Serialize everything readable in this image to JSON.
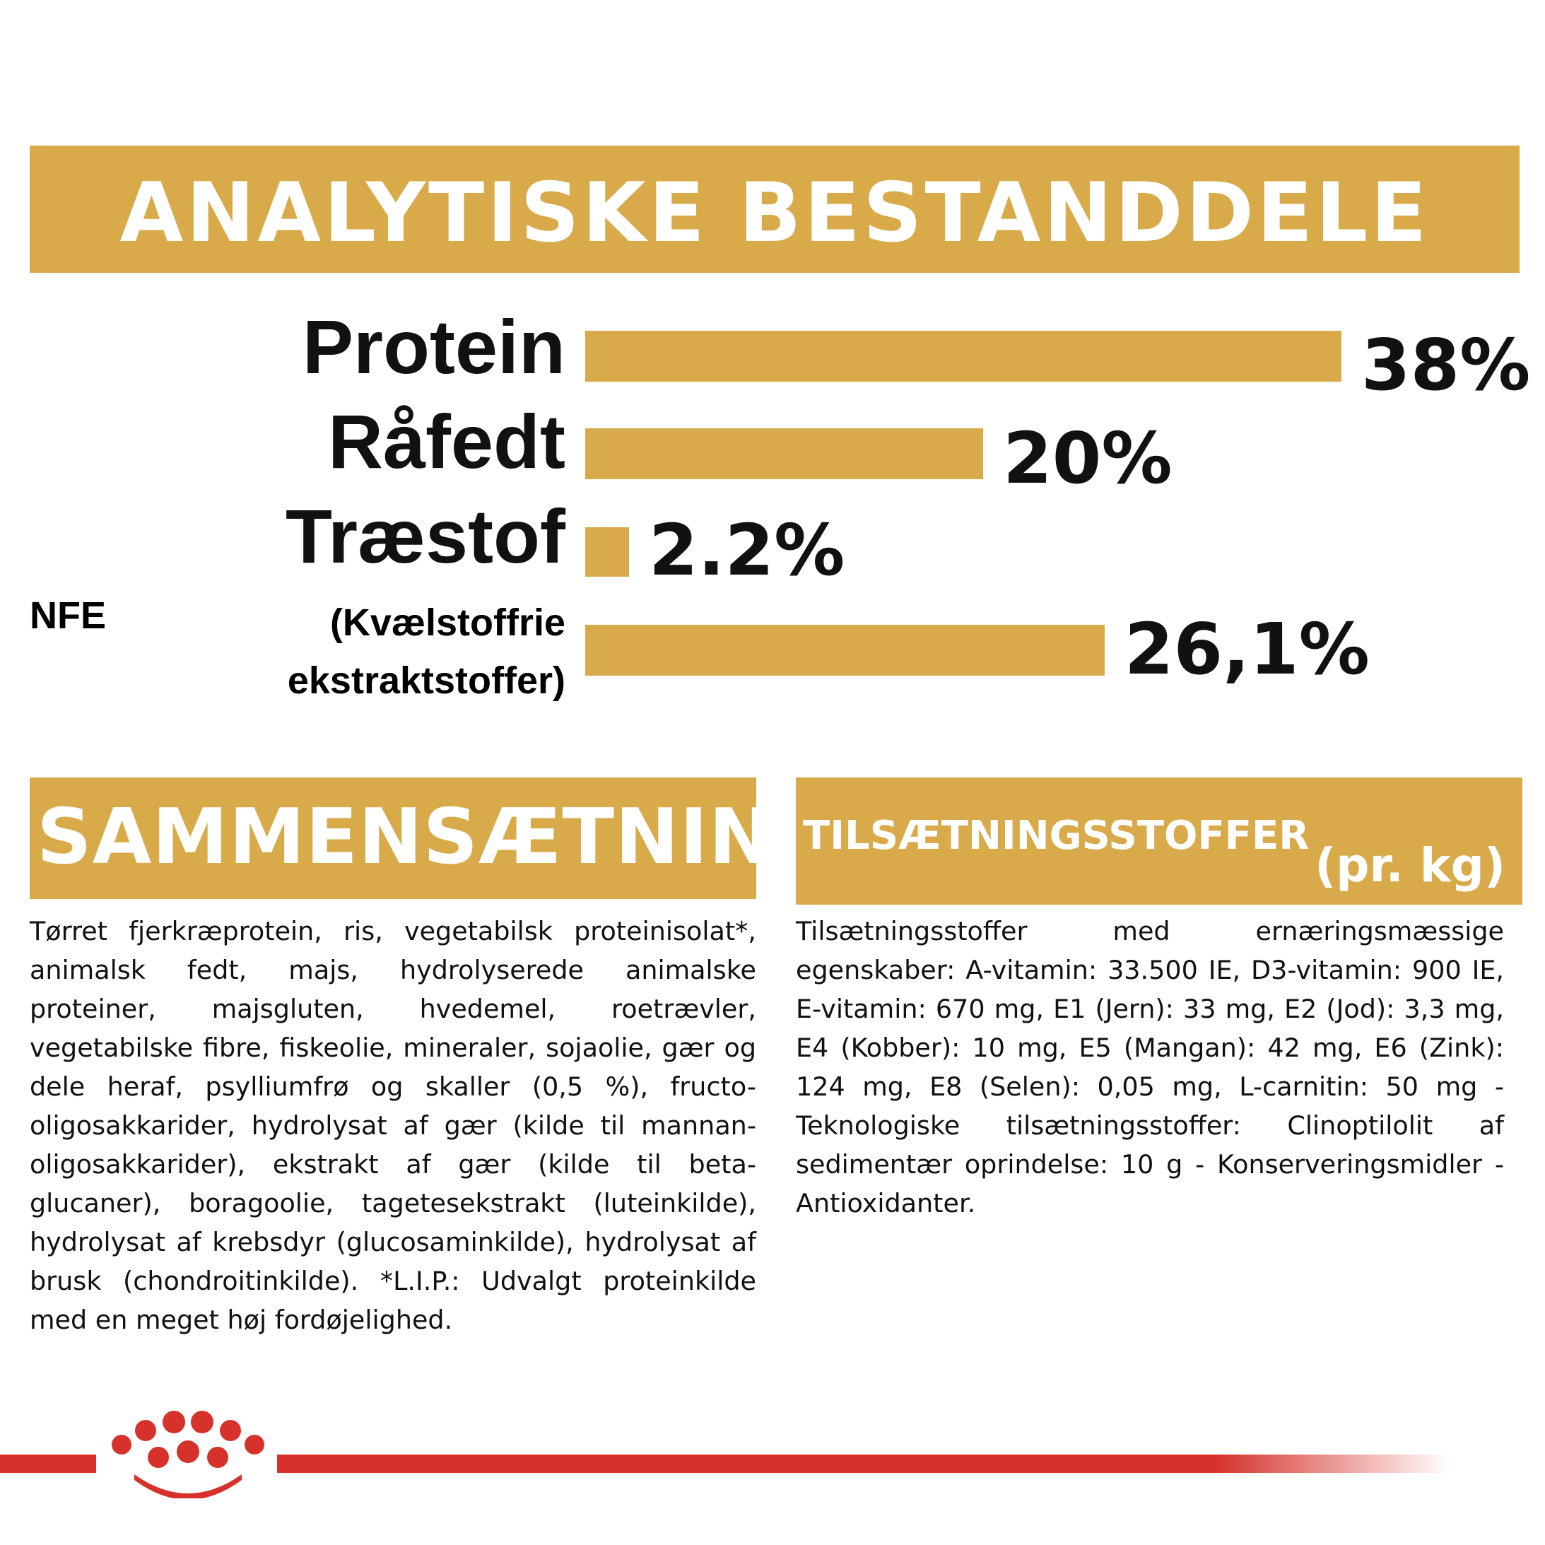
{
  "header": {
    "title": "ANALYTISKE BESTANDDELE"
  },
  "chart_data": {
    "type": "bar",
    "orientation": "horizontal",
    "categories": [
      "Protein",
      "Råfedt",
      "Træstof",
      "(Kvælstoffrie ekstraktstoffer)"
    ],
    "values": [
      38,
      20,
      2.2,
      26.1
    ],
    "value_labels": [
      "38%",
      "20%",
      "2.2%",
      "26,1%"
    ],
    "xlim": [
      0,
      38
    ],
    "bar_color": "#d9aa49"
  },
  "nfe": {
    "prefix": "NFE",
    "label_line1": "(Kvælstoffrie",
    "label_line2": "ekstraktstoffer)"
  },
  "composition": {
    "title": "SAMMENSÆTNING",
    "text": "Tørret fjerkræprotein, ris, vegetabilsk proteinisolat*, animalsk fedt, majs, hydrolyserede animalske proteiner, majsgluten, hvedemel, roetrævler, vegetabilske fibre, fiskeolie, mineraler, sojaolie, gær og dele heraf, psylliumfrø og skaller (0,5 %), fructo-oligosakkarider, hydrolysat af gær (kilde til mannan-oligosakkarider), ekstrakt af gær (kilde til beta-glucaner), boragoolie, tagetesekstrakt (luteinkilde), hydrolysat af krebsdyr (glucosaminkilde), hydrolysat af brusk (chondroitinkilde). *L.I.P.: Udvalgt proteinkilde med en meget høj fordøjelighed."
  },
  "additives": {
    "title": "TILSÆTNINGSSTOFFER",
    "subtitle": "(pr. kg)",
    "text": "Tilsætningsstoffer med ernæringsmæssige egenskaber: A-vitamin: 33.500 IE, D3-vitamin: 900 IE, E-vitamin: 670 mg, E1 (Jern): 33 mg, E2 (Jod): 3,3 mg, E4 (Kobber): 10 mg, E5 (Mangan): 42 mg, E6 (Zink): 124 mg, E8 (Selen): 0,05 mg, L-carnitin: 50 mg - Teknologiske tilsætningsstoffer: Clinoptilolit af sedimentær oprindelse: 10 g - Konserveringsmidler - Antioxidanter."
  },
  "colors": {
    "accent": "#d9aa49",
    "brand_red": "#d6322b"
  },
  "footer": {
    "logo_icon": "royal-canin-crown-icon"
  }
}
